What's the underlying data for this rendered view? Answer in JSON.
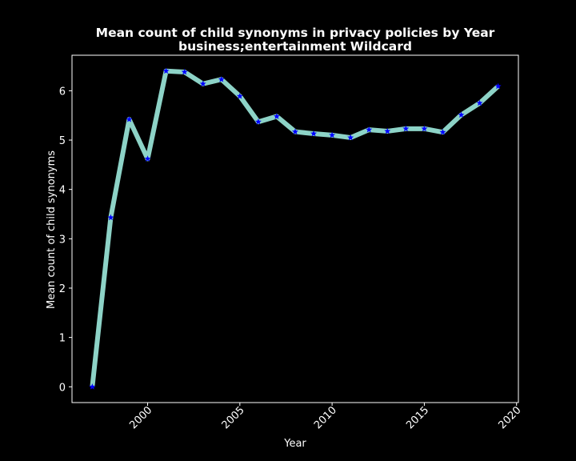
{
  "chart_data": {
    "type": "line",
    "title": "Mean count of child synonyms in privacy policies by Year",
    "subtitle": "business;entertainment Wildcard",
    "xlabel": "Year",
    "ylabel": "Mean count of child synonyms",
    "xlim": [
      1995.9,
      2020.1
    ],
    "ylim": [
      -0.32,
      6.72
    ],
    "xticks": [
      2000,
      2005,
      2010,
      2015,
      2020
    ],
    "yticks": [
      0,
      1,
      2,
      3,
      4,
      5,
      6
    ],
    "grid": false,
    "series": [
      {
        "x": [
          1997,
          1998,
          1999,
          2000,
          2001,
          2002,
          2003,
          2004,
          2005,
          2006,
          2007,
          2008,
          2009,
          2010,
          2011,
          2012,
          2013,
          2014,
          2015,
          2016,
          2017,
          2018,
          2019
        ],
        "values": [
          0.0,
          3.43,
          5.42,
          4.62,
          6.4,
          6.38,
          6.14,
          6.23,
          5.89,
          5.37,
          5.48,
          5.17,
          5.13,
          5.1,
          5.05,
          5.21,
          5.18,
          5.23,
          5.23,
          5.16,
          5.51,
          5.75,
          6.09
        ],
        "line_color": "#8dd3c7",
        "marker_color": "#0000ff",
        "marker": "star"
      }
    ]
  }
}
